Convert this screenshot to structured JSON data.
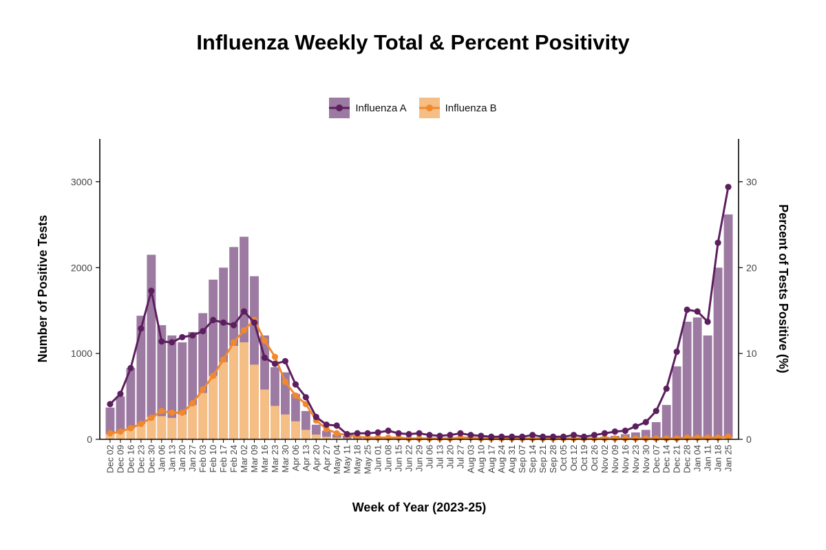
{
  "chart_data": {
    "type": "bar",
    "title": "Influenza Weekly Total & Percent Positivity",
    "xlabel": "Week of Year (2023-25)",
    "ylabel": "Number of Positive Tests",
    "y2label": "Percent of Tests Positive (%)",
    "ylim": [
      0,
      3500
    ],
    "y2lim": [
      0,
      35
    ],
    "yticks": [
      0,
      1000,
      2000,
      3000
    ],
    "y2ticks": [
      0,
      10,
      20,
      30
    ],
    "grid": false,
    "legend_position": "top-center",
    "colors": {
      "influenza_a": "#5C1F5E",
      "influenza_a_bar": "#9D7AA1",
      "influenza_b": "#F0892E",
      "influenza_b_bar": "#F5BE85"
    },
    "categories": [
      "Dec 02",
      "Dec 09",
      "Dec 16",
      "Dec 23",
      "Dec 30",
      "Jan 06",
      "Jan 13",
      "Jan 20",
      "Jan 27",
      "Feb 03",
      "Feb 10",
      "Feb 17",
      "Feb 24",
      "Mar 02",
      "Mar 09",
      "Mar 16",
      "Mar 23",
      "Mar 30",
      "Apr 06",
      "Apr 13",
      "Apr 20",
      "Apr 27",
      "May 04",
      "May 11",
      "May 18",
      "May 25",
      "Jun 01",
      "Jun 08",
      "Jun 15",
      "Jun 22",
      "Jun 29",
      "Jul 06",
      "Jul 13",
      "Jul 20",
      "Jul 27",
      "Aug 03",
      "Aug 10",
      "Aug 17",
      "Aug 24",
      "Aug 31",
      "Sep 07",
      "Sep 14",
      "Sep 21",
      "Sep 28",
      "Oct 05",
      "Oct 12",
      "Oct 19",
      "Oct 26",
      "Nov 02",
      "Nov 09",
      "Nov 16",
      "Nov 23",
      "Nov 30",
      "Dec 07",
      "Dec 14",
      "Dec 21",
      "Dec 28",
      "Jan 04",
      "Jan 11",
      "Jan 18",
      "Jan 25"
    ],
    "series": [
      {
        "name": "Influenza A",
        "type": "bar_total_and_line",
        "bar_values": [
          370,
          500,
          830,
          1440,
          2150,
          1330,
          1210,
          1130,
          1250,
          1470,
          1860,
          2000,
          2240,
          2360,
          1900,
          1210,
          840,
          780,
          530,
          330,
          170,
          100,
          60,
          40,
          30,
          25,
          20,
          30,
          20,
          20,
          20,
          15,
          15,
          20,
          20,
          15,
          15,
          10,
          10,
          10,
          10,
          15,
          10,
          10,
          10,
          15,
          10,
          20,
          30,
          40,
          60,
          80,
          110,
          200,
          400,
          850,
          1370,
          1420,
          1210,
          2000,
          2620
        ],
        "pct_values": [
          4.1,
          5.3,
          8.3,
          12.9,
          17.3,
          11.4,
          11.3,
          11.9,
          12.1,
          12.6,
          13.9,
          13.6,
          13.3,
          14.9,
          13.6,
          9.5,
          8.8,
          9.1,
          6.4,
          4.9,
          2.6,
          1.7,
          1.6,
          0.6,
          0.7,
          0.7,
          0.8,
          1.0,
          0.7,
          0.6,
          0.7,
          0.5,
          0.4,
          0.5,
          0.7,
          0.5,
          0.4,
          0.3,
          0.3,
          0.3,
          0.3,
          0.5,
          0.3,
          0.3,
          0.3,
          0.5,
          0.3,
          0.5,
          0.7,
          0.9,
          1.0,
          1.5,
          2.0,
          3.3,
          5.9,
          10.2,
          15.1,
          14.9,
          13.7,
          22.9,
          29.4
        ]
      },
      {
        "name": "Influenza B",
        "type": "bar_and_line",
        "bar_values": [
          60,
          90,
          130,
          180,
          260,
          270,
          250,
          290,
          400,
          540,
          740,
          900,
          1090,
          1130,
          870,
          580,
          390,
          290,
          210,
          110,
          55,
          30,
          20,
          10,
          5,
          5,
          5,
          5,
          5,
          5,
          5,
          5,
          5,
          5,
          5,
          5,
          5,
          5,
          5,
          5,
          5,
          5,
          5,
          5,
          5,
          5,
          5,
          5,
          5,
          5,
          5,
          5,
          5,
          10,
          10,
          10,
          15,
          15,
          15,
          20,
          20
        ],
        "pct_values": [
          0.7,
          0.9,
          1.3,
          1.8,
          2.5,
          3.3,
          3.1,
          3.1,
          4.2,
          5.8,
          7.4,
          9.3,
          11.3,
          12.7,
          13.9,
          11.5,
          9.6,
          6.7,
          5.1,
          4.1,
          2.2,
          1.2,
          0.7,
          0.5,
          0.3,
          0.2,
          0.2,
          0.2,
          0.2,
          0.1,
          0.1,
          0.1,
          0.1,
          0.1,
          0.2,
          0.2,
          0.1,
          0.1,
          0.1,
          0.1,
          0.1,
          0.1,
          0.1,
          0.1,
          0.1,
          0.1,
          0.1,
          0.1,
          0.1,
          0.1,
          0.1,
          0.1,
          0.1,
          0.1,
          0.1,
          0.1,
          0.2,
          0.2,
          0.2,
          0.2,
          0.3
        ]
      }
    ]
  }
}
